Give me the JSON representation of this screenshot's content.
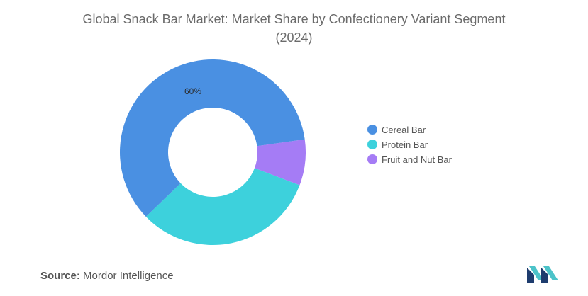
{
  "chart_data": {
    "type": "pie",
    "title": "Global Snack Bar Market: Market Share by Confectionery Variant Segment",
    "subtitle": "(2024)",
    "donut": true,
    "categories": [
      "Cereal Bar",
      "Protein Bar",
      "Fruit and Nut Bar"
    ],
    "values": [
      60,
      32,
      8
    ],
    "data_labels": [
      "60%",
      "",
      ""
    ],
    "colors": [
      "#4a90e2",
      "#3dd1dc",
      "#a57cf5"
    ],
    "legend_position": "right"
  },
  "source": {
    "label": "Source:",
    "text": "Mordor Intelligence"
  },
  "logo": {
    "icon": "mordor-intelligence-logo-icon",
    "colors": [
      "#1e3c6e",
      "#4cc3c9"
    ]
  }
}
